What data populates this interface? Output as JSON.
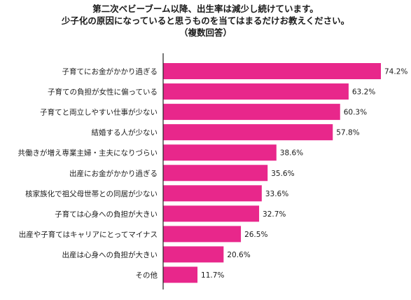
{
  "title": {
    "line1": "第二次ベビーブーム以降、出生率は減少し続けています。",
    "line2": "少子化の原因になっていると思うものを当てはまるだけお教えください。",
    "line3": "（複数回答）"
  },
  "colors": {
    "bar": "#e8278b",
    "axis": "#222222"
  },
  "chart_data": {
    "type": "bar",
    "orientation": "horizontal",
    "title": "第二次ベビーブーム以降、出生率は減少し続けています。少子化の原因になっていると思うものを当てはまるだけお教えください。（複数回答）",
    "xlabel": "",
    "ylabel": "",
    "value_suffix": "%",
    "xlim": [
      0,
      80
    ],
    "grid": false,
    "categories": [
      "子育てにお金がかかり過ぎる",
      "子育ての負担が女性に偏っている",
      "子育てと両立しやすい仕事が少ない",
      "結婚する人が少ない",
      "共働きが増え専業主婦・主夫になりづらい",
      "出産にお金がかかり過ぎる",
      "核家族化で祖父母世帯との同居が少ない",
      "子育ては心身への負担が大きい",
      "出産や子育てはキャリアにとってマイナス",
      "出産は心身への負担が大きい",
      "その他"
    ],
    "values": [
      74.2,
      63.2,
      60.3,
      57.8,
      38.6,
      35.6,
      33.6,
      32.7,
      26.5,
      20.6,
      11.7
    ],
    "value_labels": [
      "74.2%",
      "63.2%",
      "60.3%",
      "57.8%",
      "38.6%",
      "35.6%",
      "33.6%",
      "32.7%",
      "26.5%",
      "20.6%",
      "11.7%"
    ]
  }
}
